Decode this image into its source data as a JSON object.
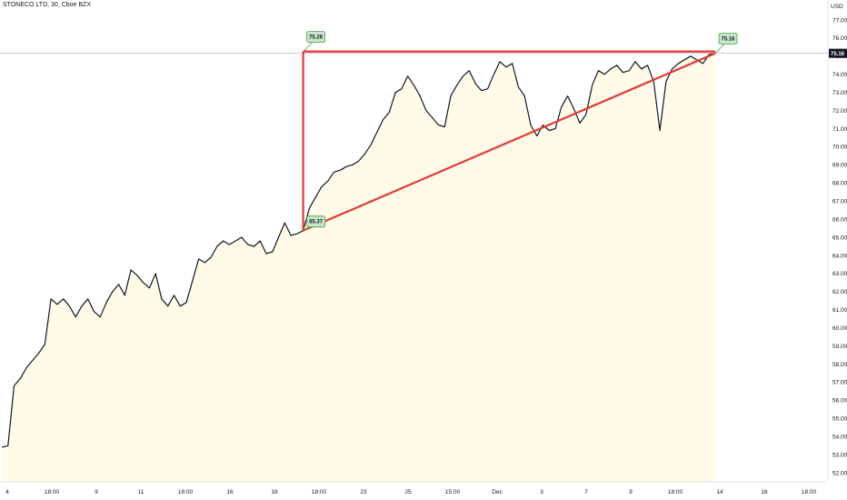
{
  "header": {
    "title": "STONECO LTD, 30, Cboe BZX"
  },
  "colors": {
    "price_line": "#131722",
    "pattern": "#e53935",
    "area_fill": "#fffbe8",
    "label_bg": "#c8e6c9",
    "label_border": "#43a047",
    "current_bg": "#131722"
  },
  "chart_data": {
    "type": "line",
    "title": "STONECO LTD, 30, Cboe BZX",
    "currency_label": "USD",
    "current_price": "75.16",
    "ylim": [
      51.5,
      77.5
    ],
    "y_ticks": [
      "77.00",
      "76.00",
      "75.00",
      "74.00",
      "73.00",
      "72.00",
      "71.00",
      "70.00",
      "69.00",
      "68.00",
      "67.00",
      "66.00",
      "65.00",
      "64.00",
      "63.00",
      "62.00",
      "61.00",
      "60.00",
      "59.00",
      "58.00",
      "57.00",
      "56.00",
      "55.00",
      "54.00",
      "53.00",
      "52.00"
    ],
    "x_ticks": [
      "4",
      "18:00",
      "9",
      "11",
      "18:00",
      "16",
      "18",
      "18:00",
      "23",
      "25",
      "15:00",
      "Dec",
      "3",
      "7",
      "9",
      "18:00",
      "14",
      "16",
      "18:00"
    ],
    "annotations": [
      {
        "label": "75.26",
        "value": 75.26,
        "kind": "pattern-top"
      },
      {
        "label": "65.37",
        "value": 65.37,
        "kind": "pattern-low"
      },
      {
        "label": "75.16",
        "value": 75.16,
        "kind": "pattern-apex"
      }
    ],
    "series": [
      {
        "values": [
          53.4,
          53.5,
          56.8,
          57.2,
          57.8,
          58.2,
          58.6,
          59.1,
          61.6,
          61.3,
          61.6,
          61.2,
          60.6,
          61.2,
          61.6,
          60.9,
          60.6,
          61.4,
          62.0,
          62.4,
          61.8,
          63.2,
          62.9,
          62.5,
          62.2,
          63.0,
          61.6,
          61.2,
          61.8,
          61.2,
          61.4,
          62.6,
          63.8,
          63.6,
          63.9,
          64.5,
          64.8,
          64.6,
          64.8,
          65.0,
          64.6,
          64.5,
          64.8,
          64.1,
          64.2,
          65.0,
          65.8,
          65.1,
          65.2,
          65.37,
          66.6,
          67.2,
          67.8,
          68.1,
          68.6,
          68.7,
          68.9,
          69.0,
          69.2,
          69.6,
          70.1,
          70.8,
          71.5,
          71.9,
          73.0,
          73.2,
          73.9,
          73.4,
          72.8,
          72.0,
          71.6,
          71.2,
          71.1,
          72.8,
          73.4,
          73.9,
          74.2,
          73.5,
          73.1,
          73.2,
          74.0,
          74.7,
          74.4,
          74.6,
          73.3,
          72.8,
          71.2,
          70.6,
          71.2,
          70.9,
          71.0,
          72.2,
          72.8,
          72.1,
          71.3,
          71.8,
          73.4,
          74.2,
          74.0,
          74.3,
          74.5,
          74.1,
          74.2,
          74.7,
          74.3,
          74.5,
          73.6,
          70.9,
          73.6,
          74.3,
          74.6,
          74.8,
          75.0,
          74.8,
          74.6,
          75.1,
          75.16
        ]
      }
    ]
  }
}
